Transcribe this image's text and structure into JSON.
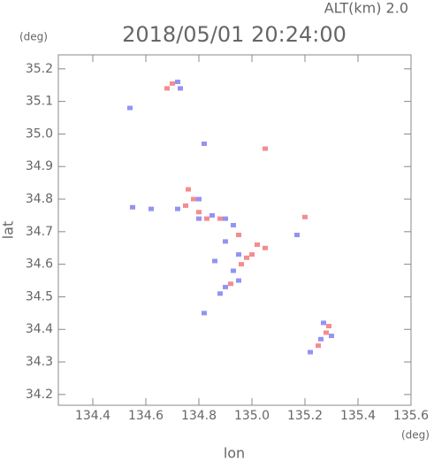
{
  "chart_data": {
    "type": "scatter",
    "title": "2018/05/01 20:24:00",
    "subtitle": "ALT(km) 2.0",
    "xlabel": "lon",
    "ylabel": "lat",
    "xunit": "(deg)",
    "yunit": "(deg)",
    "xlim": [
      134.27,
      135.6
    ],
    "ylim": [
      34.167,
      35.243
    ],
    "xticks": [
      134.4,
      134.6,
      134.8,
      {
        "value": 135,
        "label": "135.0"
      },
      135.2,
      135.4,
      135.6
    ],
    "yticks": [
      34.2,
      34.3,
      34.4,
      34.5,
      34.6,
      34.7,
      34.8,
      34.9,
      {
        "value": 35,
        "label": "35.0"
      },
      35.1,
      35.2
    ],
    "series": [
      {
        "color": "#f07070",
        "x": [
          134.68,
          134.7,
          134.76,
          134.78,
          134.75,
          134.8,
          134.88,
          134.95,
          135.02,
          135.05,
          134.98,
          134.96,
          134.92,
          135.29,
          135.28,
          135.25,
          135.2,
          135.05,
          134.83,
          135.0
        ],
        "values": [
          35.14,
          35.155,
          34.83,
          34.8,
          34.78,
          34.76,
          34.74,
          34.69,
          34.66,
          34.65,
          34.62,
          34.6,
          34.54,
          34.41,
          34.39,
          34.35,
          34.745,
          34.955,
          34.74,
          34.63
        ]
      },
      {
        "color": "#7878f0",
        "x": [
          134.54,
          134.72,
          134.73,
          134.55,
          134.62,
          134.72,
          134.8,
          134.85,
          134.9,
          134.93,
          134.9,
          134.95,
          134.93,
          134.88,
          134.9,
          134.95,
          135.22,
          135.26,
          135.3,
          135.27,
          134.82,
          134.82,
          135.17,
          134.86,
          134.8
        ],
        "values": [
          35.08,
          35.16,
          35.14,
          34.775,
          34.77,
          34.77,
          34.8,
          34.75,
          34.74,
          34.72,
          34.67,
          34.63,
          34.58,
          34.51,
          34.53,
          34.55,
          34.33,
          34.37,
          34.38,
          34.42,
          34.97,
          34.45,
          34.69,
          34.61,
          34.74
        ]
      }
    ]
  }
}
